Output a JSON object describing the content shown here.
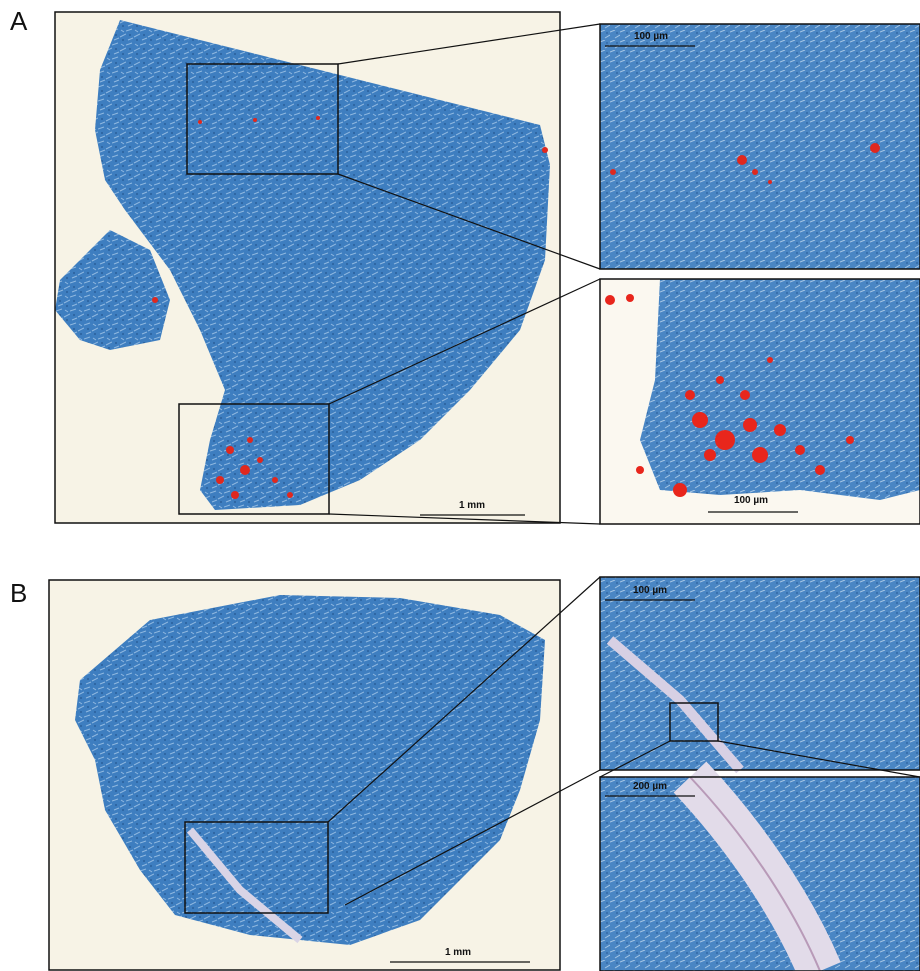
{
  "panels": [
    {
      "label": "A",
      "overview_scale": "1 mm",
      "insets": [
        {
          "scale": "100 µm"
        },
        {
          "scale": "100 µm"
        }
      ]
    },
    {
      "label": "B",
      "overview_scale": "1 mm",
      "insets": [
        {
          "scale": "100 µm"
        },
        {
          "scale": "200 µm"
        }
      ]
    }
  ]
}
